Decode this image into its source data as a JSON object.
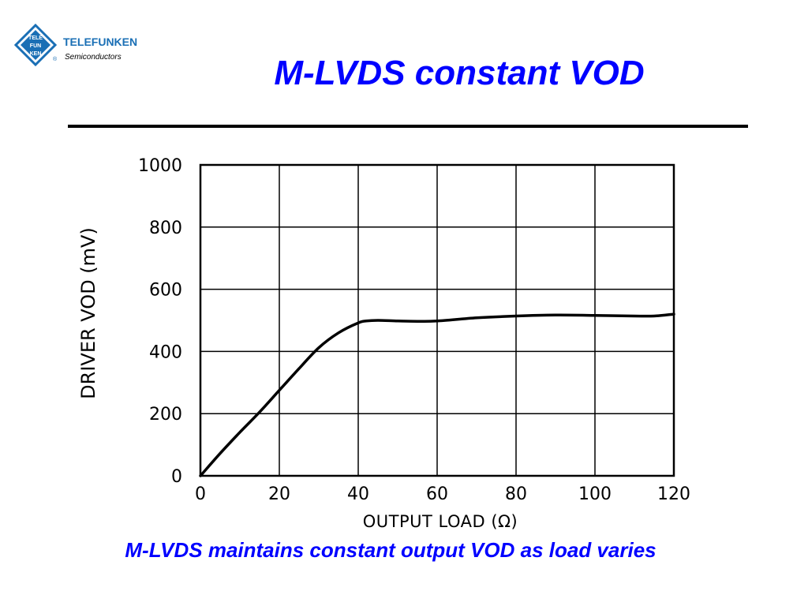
{
  "slide": {
    "title": "M-LVDS constant VOD",
    "caption": "M-LVDS maintains constant output VOD as load varies"
  },
  "logo": {
    "brand": "TELEFUNKEN",
    "tagline": "Semiconductors",
    "emblem_lines": [
      "TELE",
      "FUN",
      "KEN"
    ],
    "registered_mark": "®",
    "color": "#1a6fb5"
  },
  "colors": {
    "title": "#0000ff",
    "caption": "#0000ff",
    "curve": "#000000",
    "grid": "#000000"
  },
  "chart_data": {
    "type": "line",
    "title": "",
    "xlabel": "OUTPUT LOAD (Ω)",
    "ylabel": "DRIVER VOD (mV)",
    "xlim": [
      0,
      120
    ],
    "ylim": [
      0,
      1000
    ],
    "xticks": [
      0,
      20,
      40,
      60,
      80,
      100,
      120
    ],
    "yticks": [
      0,
      200,
      400,
      600,
      800,
      1000
    ],
    "grid": true,
    "legend": "none",
    "series": [
      {
        "x": [
          0,
          5,
          10,
          15,
          20,
          25,
          30,
          35,
          40,
          42,
          45,
          50,
          55,
          60,
          70,
          80,
          90,
          100,
          110,
          115,
          120
        ],
        "y": [
          0,
          72,
          140,
          205,
          275,
          345,
          412,
          460,
          492,
          498,
          500,
          498,
          497,
          498,
          508,
          514,
          517,
          516,
          514,
          514,
          520
        ]
      }
    ]
  }
}
